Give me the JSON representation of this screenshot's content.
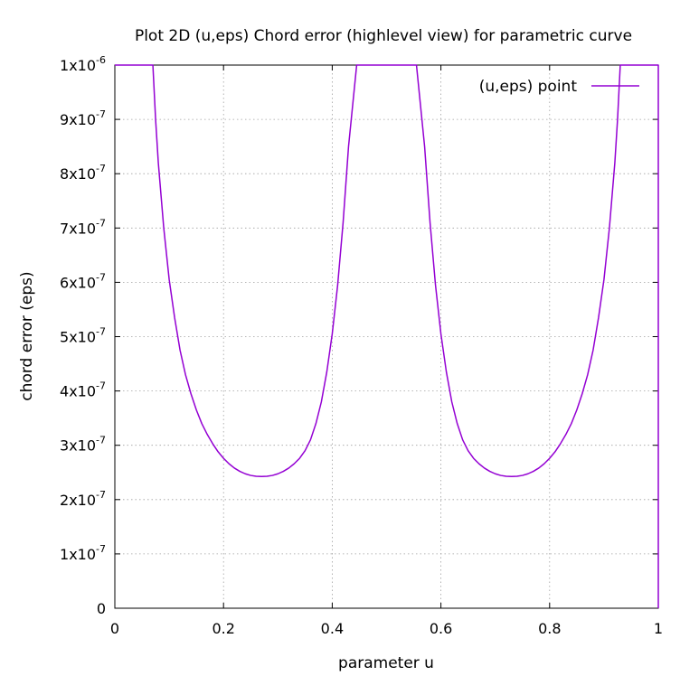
{
  "chart_data": {
    "type": "line",
    "title": "Plot 2D (u,eps) Chord error (highlevel view) for parametric curve",
    "xlabel": "parameter u",
    "ylabel": "chord error (eps)",
    "xlim": [
      0,
      1
    ],
    "ylim": [
      0,
      1e-06
    ],
    "grid": true,
    "legend_position": "top-right",
    "x_ticks": [
      {
        "value": 0,
        "label": "0"
      },
      {
        "value": 0.2,
        "label": "0.2"
      },
      {
        "value": 0.4,
        "label": "0.4"
      },
      {
        "value": 0.6,
        "label": "0.6"
      },
      {
        "value": 0.8,
        "label": "0.8"
      },
      {
        "value": 1,
        "label": "1"
      }
    ],
    "y_ticks": [
      {
        "value": 0,
        "base": "0",
        "exp": ""
      },
      {
        "value": 1e-07,
        "base": "1x10",
        "exp": "-7"
      },
      {
        "value": 2e-07,
        "base": "2x10",
        "exp": "-7"
      },
      {
        "value": 3e-07,
        "base": "3x10",
        "exp": "-7"
      },
      {
        "value": 4e-07,
        "base": "4x10",
        "exp": "-7"
      },
      {
        "value": 5e-07,
        "base": "5x10",
        "exp": "-7"
      },
      {
        "value": 6e-07,
        "base": "6x10",
        "exp": "-7"
      },
      {
        "value": 7e-07,
        "base": "7x10",
        "exp": "-7"
      },
      {
        "value": 8e-07,
        "base": "8x10",
        "exp": "-7"
      },
      {
        "value": 9e-07,
        "base": "9x10",
        "exp": "-7"
      },
      {
        "value": 1e-06,
        "base": "1x10",
        "exp": "-6"
      }
    ],
    "series": [
      {
        "name": "(u,eps) point",
        "color": "#9400d3",
        "points": [
          [
            0,
            1e-06
          ],
          [
            0.07,
            1e-06
          ],
          [
            0.075,
            9e-07
          ],
          [
            0.08,
            8.2e-07
          ],
          [
            0.09,
            7e-07
          ],
          [
            0.1,
            6.05e-07
          ],
          [
            0.11,
            5.35e-07
          ],
          [
            0.12,
            4.75e-07
          ],
          [
            0.13,
            4.3e-07
          ],
          [
            0.14,
            3.95e-07
          ],
          [
            0.15,
            3.65e-07
          ],
          [
            0.16,
            3.4e-07
          ],
          [
            0.17,
            3.2e-07
          ],
          [
            0.18,
            3.03e-07
          ],
          [
            0.19,
            2.88e-07
          ],
          [
            0.2,
            2.76e-07
          ],
          [
            0.21,
            2.66e-07
          ],
          [
            0.22,
            2.58e-07
          ],
          [
            0.23,
            2.52e-07
          ],
          [
            0.24,
            2.475e-07
          ],
          [
            0.25,
            2.445e-07
          ],
          [
            0.26,
            2.43e-07
          ],
          [
            0.27,
            2.425e-07
          ],
          [
            0.28,
            2.43e-07
          ],
          [
            0.29,
            2.445e-07
          ],
          [
            0.3,
            2.475e-07
          ],
          [
            0.31,
            2.52e-07
          ],
          [
            0.32,
            2.58e-07
          ],
          [
            0.33,
            2.66e-07
          ],
          [
            0.34,
            2.76e-07
          ],
          [
            0.35,
            2.9e-07
          ],
          [
            0.36,
            3.1e-07
          ],
          [
            0.37,
            3.4e-07
          ],
          [
            0.38,
            3.8e-07
          ],
          [
            0.39,
            4.35e-07
          ],
          [
            0.4,
            5.05e-07
          ],
          [
            0.41,
            5.95e-07
          ],
          [
            0.42,
            7.1e-07
          ],
          [
            0.43,
            8.5e-07
          ],
          [
            0.445,
            1e-06
          ],
          [
            0.555,
            1e-06
          ],
          [
            0.57,
            8.5e-07
          ],
          [
            0.58,
            7.1e-07
          ],
          [
            0.59,
            5.95e-07
          ],
          [
            0.6,
            5.05e-07
          ],
          [
            0.61,
            4.35e-07
          ],
          [
            0.62,
            3.8e-07
          ],
          [
            0.63,
            3.4e-07
          ],
          [
            0.64,
            3.1e-07
          ],
          [
            0.65,
            2.9e-07
          ],
          [
            0.66,
            2.76e-07
          ],
          [
            0.67,
            2.66e-07
          ],
          [
            0.68,
            2.58e-07
          ],
          [
            0.69,
            2.52e-07
          ],
          [
            0.7,
            2.475e-07
          ],
          [
            0.71,
            2.445e-07
          ],
          [
            0.72,
            2.43e-07
          ],
          [
            0.73,
            2.425e-07
          ],
          [
            0.74,
            2.43e-07
          ],
          [
            0.75,
            2.445e-07
          ],
          [
            0.76,
            2.475e-07
          ],
          [
            0.77,
            2.52e-07
          ],
          [
            0.78,
            2.58e-07
          ],
          [
            0.79,
            2.66e-07
          ],
          [
            0.8,
            2.76e-07
          ],
          [
            0.81,
            2.88e-07
          ],
          [
            0.82,
            3.03e-07
          ],
          [
            0.83,
            3.2e-07
          ],
          [
            0.84,
            3.4e-07
          ],
          [
            0.85,
            3.65e-07
          ],
          [
            0.86,
            3.95e-07
          ],
          [
            0.87,
            4.3e-07
          ],
          [
            0.88,
            4.75e-07
          ],
          [
            0.89,
            5.35e-07
          ],
          [
            0.9,
            6.05e-07
          ],
          [
            0.91,
            7e-07
          ],
          [
            0.92,
            8.2e-07
          ],
          [
            0.925,
            9e-07
          ],
          [
            0.93,
            1e-06
          ],
          [
            1.0,
            1e-06
          ],
          [
            1.0,
            0
          ]
        ]
      }
    ]
  }
}
